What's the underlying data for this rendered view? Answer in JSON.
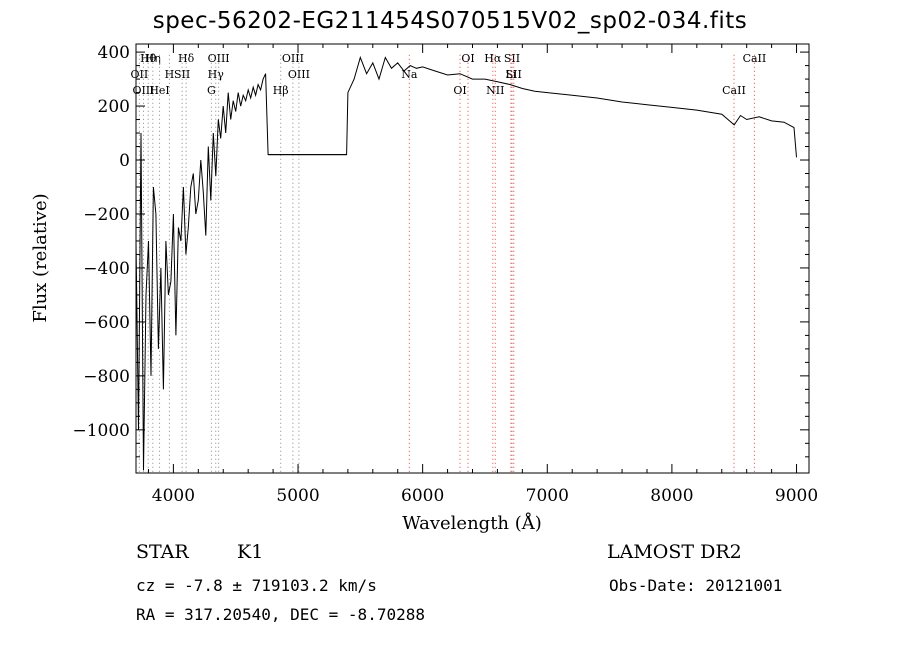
{
  "chart_data": {
    "type": "line",
    "title": "spec-56202-EG211454S070515V02_sp02-034.fits",
    "xlabel": "Wavelength (Å)",
    "ylabel": "Flux (relative)",
    "xlim": [
      3700,
      9100
    ],
    "ylim": [
      -1160,
      430
    ],
    "x_ticks": [
      4000,
      5000,
      6000,
      7000,
      8000,
      9000
    ],
    "y_ticks": [
      400,
      200,
      0,
      -200,
      -400,
      -600,
      -800,
      -1000
    ],
    "gap": [
      4760,
      5390
    ],
    "series": [
      {
        "x": [
          3700,
          3720,
          3740,
          3760,
          3780,
          3800,
          3820,
          3840,
          3860,
          3880,
          3900,
          3920,
          3940,
          3960,
          3980,
          4000,
          4020,
          4040,
          4060,
          4080,
          4100,
          4120,
          4140,
          4160,
          4180,
          4200,
          4220,
          4240,
          4260,
          4280,
          4300,
          4320,
          4340,
          4360,
          4380,
          4400,
          4420,
          4440,
          4460,
          4480,
          4500,
          4520,
          4540,
          4560,
          4580,
          4600,
          4620,
          4640,
          4660,
          4680,
          4700,
          4720,
          4740,
          4760,
          5390,
          5400,
          5450,
          5500,
          5550,
          5600,
          5650,
          5700,
          5750,
          5800,
          5850,
          5900,
          5950,
          6000,
          6100,
          6200,
          6300,
          6400,
          6500,
          6600,
          6700,
          6800,
          6900,
          7000,
          7200,
          7400,
          7600,
          7800,
          8000,
          8200,
          8400,
          8500,
          8550,
          8600,
          8700,
          8800,
          8900,
          8980,
          9000
        ],
        "values": [
          -300,
          -1000,
          100,
          -1150,
          -500,
          -300,
          -800,
          -100,
          -200,
          -700,
          -400,
          -850,
          -300,
          -500,
          -450,
          -200,
          -650,
          -250,
          -300,
          -100,
          -350,
          -250,
          -100,
          -50,
          -200,
          -150,
          0,
          -120,
          -280,
          50,
          -150,
          100,
          -60,
          150,
          80,
          200,
          100,
          250,
          150,
          220,
          180,
          250,
          200,
          240,
          220,
          260,
          230,
          270,
          240,
          280,
          260,
          300,
          320,
          20,
          20,
          250,
          300,
          380,
          320,
          360,
          300,
          380,
          340,
          360,
          330,
          350,
          340,
          345,
          330,
          315,
          320,
          300,
          300,
          290,
          280,
          265,
          255,
          250,
          240,
          230,
          215,
          205,
          195,
          185,
          170,
          130,
          165,
          150,
          160,
          145,
          140,
          120,
          10
        ]
      }
    ],
    "lines_red": [
      {
        "label": "Hα",
        "x": 6563
      },
      {
        "label": "Na",
        "x": 5893
      },
      {
        "label": "NII",
        "x": 6583
      },
      {
        "label": "SII",
        "x": 6717
      },
      {
        "label": "SII",
        "x": 6731
      },
      {
        "label": "OI",
        "x": 6300
      },
      {
        "label": "OI",
        "x": 6364
      },
      {
        "label": "Li",
        "x": 6708
      },
      {
        "label": "CaII",
        "x": 8498
      },
      {
        "label": "CaII",
        "x": 8662
      }
    ],
    "lines_gray": [
      {
        "label": "Hθ",
        "x": 3798
      },
      {
        "label": "OII",
        "x": 3727
      },
      {
        "label": "OIII",
        "x": 3760
      },
      {
        "label": "Hη",
        "x": 3835
      },
      {
        "label": "H",
        "x": 3968
      },
      {
        "label": "HeI",
        "x": 3889
      },
      {
        "label": "Hδ",
        "x": 4102
      },
      {
        "label": "SII",
        "x": 4070
      },
      {
        "label": "G",
        "x": 4305
      },
      {
        "label": "OIII",
        "x": 4363
      },
      {
        "label": "Hγ",
        "x": 4340
      },
      {
        "label": "Hβ",
        "x": 4861
      },
      {
        "label": "OIII",
        "x": 4959
      },
      {
        "label": "OIII",
        "x": 5007
      }
    ],
    "object_class": "STAR",
    "subclass": "K1",
    "survey": "LAMOST DR2",
    "cz": "cz = -7.8 ± 719103.2 km/s",
    "obs_date": "Obs-Date: 20121001",
    "radec": "RA = 317.20540, DEC =  -8.70288"
  }
}
